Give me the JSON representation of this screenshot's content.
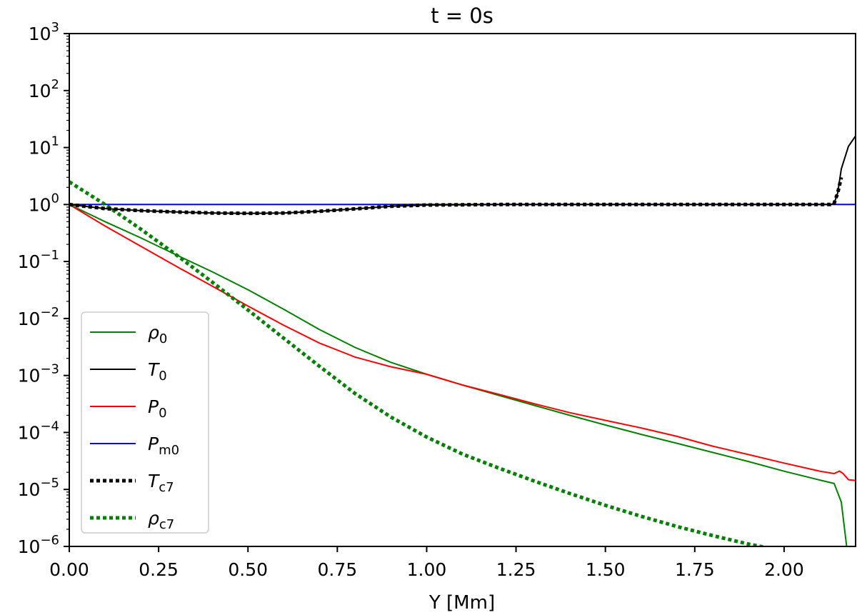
{
  "chart_data": {
    "type": "line",
    "title": "t = 0s",
    "xlabel": "Y [Mm]",
    "ylabel": "",
    "xlim": [
      0.0,
      2.2
    ],
    "ylim": [
      1e-06,
      1000
    ],
    "yscale": "log",
    "grid": false,
    "legend_position": "lower-left",
    "x_tick_labels": [
      "0.00",
      "0.25",
      "0.50",
      "0.75",
      "1.00",
      "1.25",
      "1.50",
      "1.75",
      "2.00"
    ],
    "x_ticks": [
      0.0,
      0.25,
      0.5,
      0.75,
      1.0,
      1.25,
      1.5,
      1.75,
      2.0
    ],
    "y_tick_labels": [
      {
        "base": "10",
        "exp": "3"
      },
      {
        "base": "10",
        "exp": "2"
      },
      {
        "base": "10",
        "exp": "1"
      },
      {
        "base": "10",
        "exp": "0"
      },
      {
        "base": "10",
        "exp": "−1"
      },
      {
        "base": "10",
        "exp": "−2"
      },
      {
        "base": "10",
        "exp": "−3"
      },
      {
        "base": "10",
        "exp": "−4"
      },
      {
        "base": "10",
        "exp": "−5"
      },
      {
        "base": "10",
        "exp": "−6"
      }
    ],
    "y_ticks": [
      1000,
      100,
      10,
      1,
      0.1,
      0.01,
      0.001,
      0.0001,
      1e-05,
      1e-06
    ],
    "series": [
      {
        "name": "ρ0",
        "legend_main": "ρ",
        "legend_sub": "0",
        "color": "#008000",
        "style": "solid",
        "x": [
          0.0,
          0.1,
          0.2,
          0.3,
          0.4,
          0.5,
          0.6,
          0.7,
          0.8,
          0.9,
          1.0,
          1.1,
          1.2,
          1.3,
          1.4,
          1.5,
          1.6,
          1.7,
          1.8,
          1.9,
          2.0,
          2.1,
          2.14,
          2.16,
          2.175
        ],
        "y": [
          1.0,
          0.5,
          0.26,
          0.13,
          0.066,
          0.032,
          0.0145,
          0.0064,
          0.0031,
          0.0017,
          0.00105,
          0.00068,
          0.00045,
          0.0003,
          0.0002,
          0.000135,
          9.25e-05,
          6.46e-05,
          4.46e-05,
          3.09e-05,
          2.09e-05,
          1.46e-05,
          1.27e-05,
          6e-06,
          1e-06
        ]
      },
      {
        "name": "T0",
        "legend_main": "T",
        "legend_sub": "0",
        "color": "#000000",
        "style": "solid",
        "x": [
          0.0,
          0.1,
          0.2,
          0.3,
          0.4,
          0.5,
          0.6,
          0.7,
          0.8,
          0.9,
          1.0,
          1.1,
          1.2,
          1.5,
          1.8,
          2.0,
          2.1,
          2.13,
          2.14,
          2.15,
          2.16,
          2.18,
          2.2
        ],
        "y": [
          1.0,
          0.85,
          0.78,
          0.74,
          0.71,
          0.7,
          0.71,
          0.76,
          0.84,
          0.93,
          0.98,
          0.99,
          1.0,
          1.0,
          1.0,
          1.0,
          1.0,
          1.0,
          1.05,
          1.6,
          4.2,
          10.5,
          16.0
        ]
      },
      {
        "name": "P0",
        "legend_main": "P",
        "legend_sub": "0",
        "color": "#ff0000",
        "style": "solid",
        "x": [
          0.0,
          0.1,
          0.2,
          0.3,
          0.4,
          0.5,
          0.6,
          0.7,
          0.8,
          0.9,
          1.0,
          1.1,
          1.2,
          1.3,
          1.4,
          1.5,
          1.6,
          1.7,
          1.8,
          1.9,
          2.0,
          2.1,
          2.14,
          2.155,
          2.165,
          2.18,
          2.2
        ],
        "y": [
          1.0,
          0.42,
          0.185,
          0.082,
          0.037,
          0.0165,
          0.0076,
          0.0037,
          0.0021,
          0.00142,
          0.00105,
          0.00068,
          0.00047,
          0.00032,
          0.000223,
          0.000163,
          0.00012,
          8.55e-05,
          5.75e-05,
          4.09e-05,
          2.9e-05,
          2.09e-05,
          1.9e-05,
          2.1e-05,
          1.9e-05,
          1.48e-05,
          1.44e-05
        ]
      },
      {
        "name": "Pm0",
        "legend_main": "P",
        "legend_sub": "m0",
        "color": "#0000ff",
        "style": "solid",
        "x": [
          0.0,
          2.2
        ],
        "y": [
          1.0,
          1.0
        ]
      },
      {
        "name": "Tc7",
        "legend_main": "T",
        "legend_sub": "c7",
        "color": "#000000",
        "style": "dotted",
        "x": [
          0.0,
          0.1,
          0.2,
          0.3,
          0.4,
          0.5,
          0.6,
          0.7,
          0.8,
          0.9,
          1.0,
          1.1,
          1.2,
          1.5,
          1.8,
          2.0,
          2.1,
          2.13,
          2.14,
          2.15,
          2.16
        ],
        "y": [
          1.0,
          0.85,
          0.78,
          0.74,
          0.71,
          0.7,
          0.71,
          0.76,
          0.84,
          0.93,
          0.98,
          0.99,
          1.0,
          1.0,
          1.0,
          1.0,
          1.0,
          1.0,
          1.05,
          1.6,
          3.0
        ]
      },
      {
        "name": "ρc7",
        "legend_main": "ρ",
        "legend_sub": "c7",
        "color": "#008000",
        "style": "dotted",
        "x": [
          0.0,
          0.1,
          0.2,
          0.3,
          0.4,
          0.5,
          0.6,
          0.7,
          0.8,
          0.9,
          1.0,
          1.1,
          1.2,
          1.3,
          1.4,
          1.5,
          1.6,
          1.7,
          1.8,
          1.9,
          2.0,
          2.1,
          2.2
        ],
        "y": [
          2.5,
          1.0,
          0.37,
          0.13,
          0.0435,
          0.0141,
          0.0045,
          0.00145,
          0.00048,
          0.000186,
          8.3e-05,
          4.17e-05,
          2.39e-05,
          1.41e-05,
          8.51e-06,
          5.25e-06,
          3.38e-06,
          2.24e-06,
          1.55e-06,
          1.1e-06,
          8.3e-07,
          6.9e-07,
          5.8e-07
        ]
      }
    ]
  }
}
